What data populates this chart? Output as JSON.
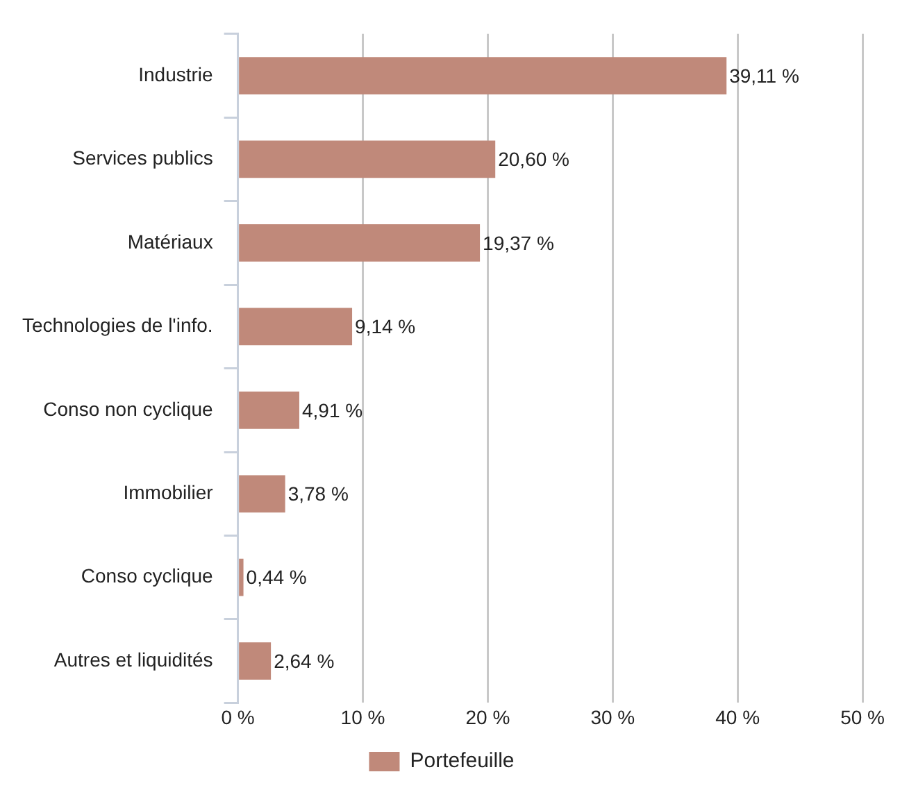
{
  "chart_data": {
    "type": "bar",
    "orientation": "horizontal",
    "categories": [
      "Industrie",
      "Services publics",
      "Matériaux",
      "Technologies de l'info.",
      "Conso non cyclique",
      "Immobilier",
      "Conso cyclique",
      "Autres et liquidités"
    ],
    "series": [
      {
        "name": "Portefeuille",
        "color": "#c0897a",
        "values": [
          39.11,
          20.6,
          19.37,
          9.14,
          4.91,
          3.78,
          0.44,
          2.64
        ],
        "value_labels": [
          "39,11 %",
          "20,60 %",
          "19,37 %",
          "9,14 %",
          "4,91 %",
          "3,78 %",
          "0,44 %",
          "2,64 %"
        ]
      }
    ],
    "xlim": [
      0,
      50
    ],
    "xticks": [
      {
        "value": 0,
        "label": "0 %"
      },
      {
        "value": 10,
        "label": "10 %"
      },
      {
        "value": 20,
        "label": "20 %"
      },
      {
        "value": 30,
        "label": "30 %"
      },
      {
        "value": 40,
        "label": "40 %"
      },
      {
        "value": 50,
        "label": "50 %"
      }
    ],
    "grid": "x",
    "legend": "bottom"
  }
}
